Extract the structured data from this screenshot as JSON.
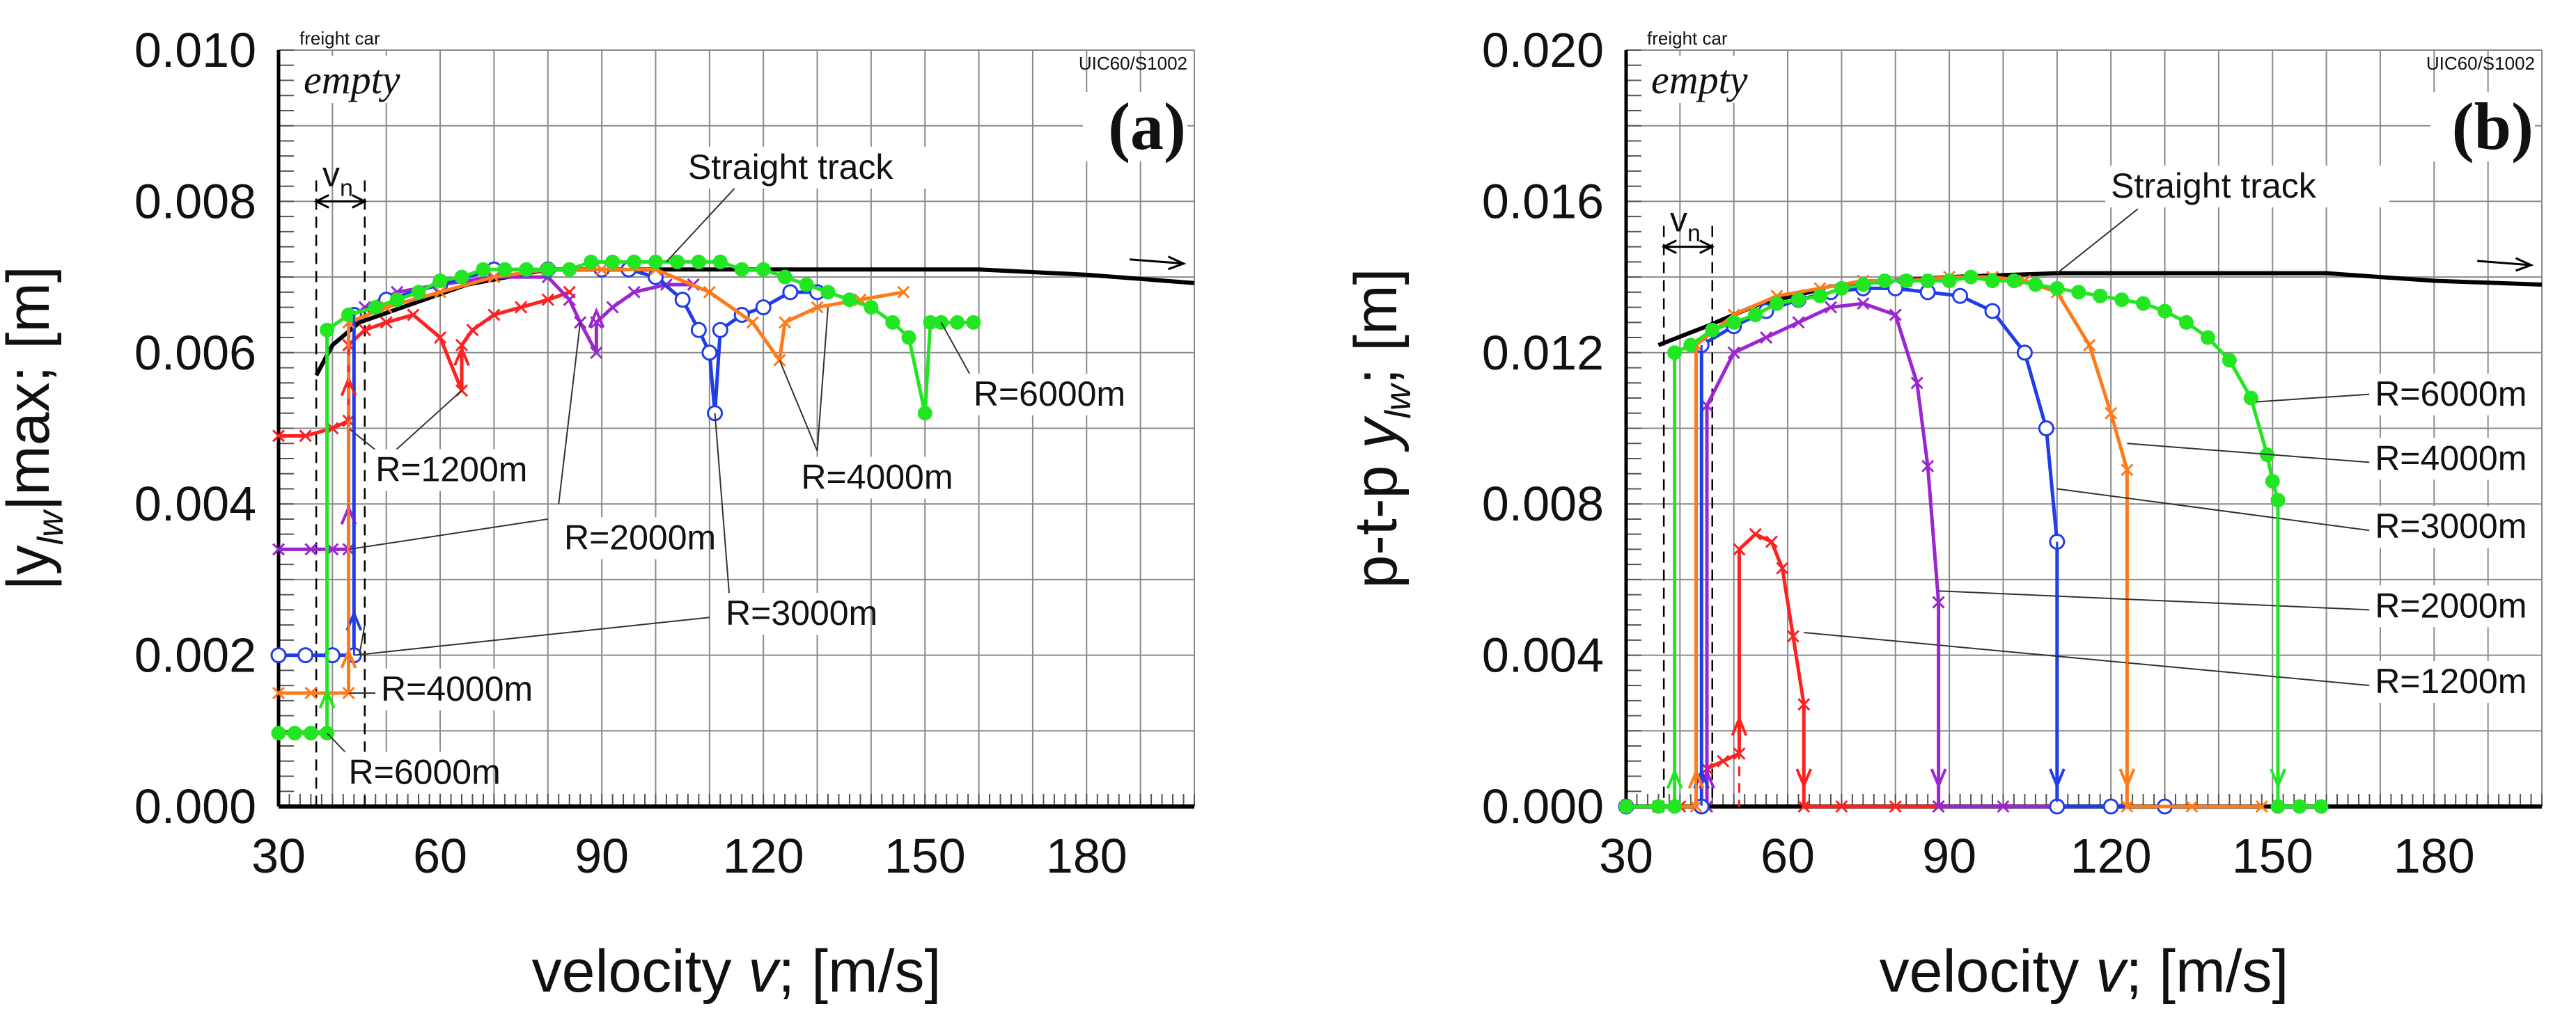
{
  "chart_data": [
    {
      "type": "line",
      "panel_label": "(a)",
      "ylabel_parts": [
        "|y",
        "lw",
        "|max; [m]"
      ],
      "xlabel_parts": [
        "velocity ",
        "v",
        "; [m/s]"
      ],
      "xlim": [
        30,
        200
      ],
      "ylim": [
        0,
        0.01
      ],
      "xticks": [
        30,
        60,
        90,
        120,
        150,
        180
      ],
      "yticks": [
        "0.000",
        "0.002",
        "0.004",
        "0.006",
        "0.008",
        "0.010"
      ],
      "corner_label_small": "freight car",
      "corner_label_big": "empty",
      "track_label": "UIC60/S1002",
      "vn_label": [
        "v",
        "n"
      ],
      "grid": true,
      "annotations": [
        "Straight track",
        "R=1200m",
        "R=2000m",
        "R=3000m",
        "R=4000m",
        "R=6000m",
        "R=2000m",
        "R=3000m",
        "R=4000m",
        "R=6000m"
      ],
      "series": [
        {
          "name": "Straight track",
          "color": "#000000",
          "marker": "none",
          "points": [
            [
              37,
              0.0057
            ],
            [
              40,
              0.0061
            ],
            [
              45,
              0.0064
            ],
            [
              55,
              0.00665
            ],
            [
              65,
              0.0069
            ],
            [
              80,
              0.0071
            ],
            [
              100,
              0.0071
            ],
            [
              130,
              0.0071
            ],
            [
              160,
              0.0071
            ],
            [
              180,
              0.00703
            ],
            [
              200,
              0.00692
            ]
          ]
        },
        {
          "name": "R=1200m",
          "color": "#ff2020",
          "marker": "x",
          "points": [
            [
              30,
              0.0049
            ],
            [
              35,
              0.0049
            ],
            [
              40,
              0.005
            ],
            [
              43,
              0.0051
            ],
            [
              43,
              0.0061
            ],
            [
              46,
              0.0063
            ],
            [
              50,
              0.0064
            ],
            [
              55,
              0.0065
            ],
            [
              60,
              0.0062
            ],
            [
              64,
              0.0055
            ],
            [
              64,
              0.0061
            ],
            [
              66,
              0.0063
            ],
            [
              70,
              0.0065
            ],
            [
              75,
              0.0066
            ],
            [
              80,
              0.0067
            ],
            [
              84,
              0.0068
            ]
          ]
        },
        {
          "name": "R=2000m",
          "color": "#9b26d0",
          "marker": "x",
          "points": [
            [
              30,
              0.0034
            ],
            [
              36,
              0.0034
            ],
            [
              40,
              0.0034
            ],
            [
              43,
              0.0034
            ],
            [
              43,
              0.0064
            ],
            [
              46,
              0.0066
            ],
            [
              52,
              0.0068
            ],
            [
              60,
              0.0069
            ],
            [
              70,
              0.007
            ],
            [
              80,
              0.007
            ],
            [
              84,
              0.0067
            ],
            [
              86,
              0.0064
            ],
            [
              89,
              0.006
            ],
            [
              89,
              0.0064
            ],
            [
              92,
              0.0066
            ],
            [
              96,
              0.0068
            ],
            [
              102,
              0.0069
            ],
            [
              107,
              0.0069
            ]
          ]
        },
        {
          "name": "R=3000m",
          "color": "#1f3de8",
          "marker": "o",
          "points": [
            [
              30,
              0.002
            ],
            [
              35,
              0.002
            ],
            [
              40,
              0.002
            ],
            [
              44,
              0.002
            ],
            [
              44,
              0.0065
            ],
            [
              50,
              0.0067
            ],
            [
              60,
              0.0069
            ],
            [
              70,
              0.0071
            ],
            [
              80,
              0.0071
            ],
            [
              90,
              0.0071
            ],
            [
              95,
              0.0071
            ],
            [
              100,
              0.007
            ],
            [
              105,
              0.0067
            ],
            [
              108,
              0.0063
            ],
            [
              110,
              0.006
            ],
            [
              111,
              0.0052
            ],
            [
              112,
              0.0063
            ],
            [
              116,
              0.0065
            ],
            [
              120,
              0.0066
            ],
            [
              125,
              0.0068
            ],
            [
              130,
              0.0068
            ]
          ]
        },
        {
          "name": "R=4000m",
          "color": "#ff7a1a",
          "marker": "x",
          "points": [
            [
              30,
              0.0015
            ],
            [
              36,
              0.0015
            ],
            [
              43,
              0.0015
            ],
            [
              43,
              0.0064
            ],
            [
              50,
              0.0066
            ],
            [
              60,
              0.0068
            ],
            [
              70,
              0.007
            ],
            [
              80,
              0.0071
            ],
            [
              90,
              0.0071
            ],
            [
              100,
              0.0071
            ],
            [
              110,
              0.0068
            ],
            [
              118,
              0.0064
            ],
            [
              123,
              0.0059
            ],
            [
              124,
              0.0064
            ],
            [
              130,
              0.0066
            ],
            [
              138,
              0.0067
            ],
            [
              146,
              0.0068
            ]
          ]
        },
        {
          "name": "R=6000m",
          "color": "#22e622",
          "marker": "dot",
          "points": [
            [
              30,
              0.00097
            ],
            [
              33,
              0.00097
            ],
            [
              36,
              0.00097
            ],
            [
              39,
              0.00097
            ],
            [
              39,
              0.0063
            ],
            [
              43,
              0.0065
            ],
            [
              48,
              0.0066
            ],
            [
              52,
              0.0067
            ],
            [
              56,
              0.0068
            ],
            [
              60,
              0.00695
            ],
            [
              64,
              0.007
            ],
            [
              68,
              0.0071
            ],
            [
              72,
              0.0071
            ],
            [
              76,
              0.0071
            ],
            [
              80,
              0.0071
            ],
            [
              84,
              0.0071
            ],
            [
              88,
              0.0072
            ],
            [
              92,
              0.0072
            ],
            [
              96,
              0.0072
            ],
            [
              100,
              0.0072
            ],
            [
              104,
              0.0072
            ],
            [
              108,
              0.0072
            ],
            [
              112,
              0.0072
            ],
            [
              116,
              0.0071
            ],
            [
              120,
              0.0071
            ],
            [
              124,
              0.007
            ],
            [
              128,
              0.0069
            ],
            [
              132,
              0.0068
            ],
            [
              136,
              0.0067
            ],
            [
              140,
              0.0066
            ],
            [
              144,
              0.0064
            ],
            [
              147,
              0.0062
            ],
            [
              150,
              0.0052
            ],
            [
              151,
              0.0064
            ],
            [
              153,
              0.0064
            ],
            [
              156,
              0.0064
            ],
            [
              159,
              0.0064
            ]
          ]
        }
      ]
    },
    {
      "type": "line",
      "panel_label": "(b)",
      "ylabel_parts": [
        "p-t-p ",
        "y",
        "lw",
        "; [m]"
      ],
      "xlabel_parts": [
        "velocity ",
        "v",
        "; [m/s]"
      ],
      "xlim": [
        30,
        200
      ],
      "ylim": [
        0,
        0.02
      ],
      "xticks": [
        30,
        60,
        90,
        120,
        150,
        180
      ],
      "yticks": [
        "0.000",
        "0.004",
        "0.008",
        "0.012",
        "0.016",
        "0.020"
      ],
      "corner_label_small": "freight car",
      "corner_label_big": "empty",
      "track_label": "UIC60/S1002",
      "vn_label": [
        "v",
        "n"
      ],
      "grid": true,
      "annotations": [
        "Straight track",
        "R=6000m",
        "R=4000m",
        "R=3000m",
        "R=2000m",
        "R=1200m"
      ],
      "series": [
        {
          "name": "Straight track",
          "color": "#000000",
          "marker": "none",
          "points": [
            [
              36,
              0.0122
            ],
            [
              45,
              0.0127
            ],
            [
              55,
              0.0133
            ],
            [
              70,
              0.0138
            ],
            [
              90,
              0.014
            ],
            [
              110,
              0.0141
            ],
            [
              160,
              0.0141
            ],
            [
              180,
              0.0139
            ],
            [
              200,
              0.0138
            ]
          ]
        },
        {
          "name": "R=1200m",
          "color": "#ff2020",
          "marker": "x",
          "points": [
            [
              30,
              0
            ],
            [
              36,
              0
            ],
            [
              40,
              0
            ],
            [
              45,
              0
            ],
            [
              45,
              0.001
            ],
            [
              48,
              0.0012
            ],
            [
              51,
              0.0014
            ],
            [
              51,
              0.0068
            ],
            [
              54,
              0.0072
            ],
            [
              57,
              0.007
            ],
            [
              59,
              0.0063
            ],
            [
              61,
              0.0045
            ],
            [
              63,
              0.0027
            ],
            [
              63,
              0
            ],
            [
              70,
              0
            ],
            [
              80,
              0
            ],
            [
              88,
              0
            ]
          ]
        },
        {
          "name": "R=2000m",
          "color": "#9b26d0",
          "marker": "x",
          "points": [
            [
              30,
              0
            ],
            [
              45,
              0
            ],
            [
              45,
              0.0106
            ],
            [
              50,
              0.012
            ],
            [
              56,
              0.0124
            ],
            [
              62,
              0.0128
            ],
            [
              68,
              0.0132
            ],
            [
              74,
              0.0133
            ],
            [
              80,
              0.013
            ],
            [
              84,
              0.0112
            ],
            [
              86,
              0.009
            ],
            [
              88,
              0.0054
            ],
            [
              88,
              0
            ],
            [
              100,
              0
            ],
            [
              110,
              0
            ]
          ]
        },
        {
          "name": "R=3000m",
          "color": "#1f3de8",
          "marker": "o",
          "points": [
            [
              30,
              0
            ],
            [
              44,
              0
            ],
            [
              44,
              0.0122
            ],
            [
              50,
              0.0127
            ],
            [
              56,
              0.0131
            ],
            [
              62,
              0.0134
            ],
            [
              68,
              0.0136
            ],
            [
              74,
              0.0137
            ],
            [
              80,
              0.0137
            ],
            [
              86,
              0.0136
            ],
            [
              92,
              0.0135
            ],
            [
              98,
              0.0131
            ],
            [
              104,
              0.012
            ],
            [
              108,
              0.01
            ],
            [
              110,
              0.007
            ],
            [
              110,
              0
            ],
            [
              120,
              0
            ],
            [
              130,
              0
            ]
          ]
        },
        {
          "name": "R=4000m",
          "color": "#ff7a1a",
          "marker": "x",
          "points": [
            [
              30,
              0
            ],
            [
              43,
              0
            ],
            [
              43,
              0.0122
            ],
            [
              50,
              0.013
            ],
            [
              58,
              0.0135
            ],
            [
              66,
              0.0137
            ],
            [
              74,
              0.0139
            ],
            [
              82,
              0.0139
            ],
            [
              90,
              0.014
            ],
            [
              98,
              0.014
            ],
            [
              104,
              0.0139
            ],
            [
              110,
              0.0136
            ],
            [
              116,
              0.0122
            ],
            [
              120,
              0.0104
            ],
            [
              123,
              0.0089
            ],
            [
              123,
              0
            ],
            [
              135,
              0
            ],
            [
              148,
              0
            ]
          ]
        },
        {
          "name": "R=6000m",
          "color": "#22e622",
          "marker": "dot",
          "points": [
            [
              30,
              0
            ],
            [
              36,
              0
            ],
            [
              39,
              0
            ],
            [
              39,
              0.012
            ],
            [
              42,
              0.0122
            ],
            [
              46,
              0.0126
            ],
            [
              50,
              0.0128
            ],
            [
              54,
              0.013
            ],
            [
              58,
              0.0133
            ],
            [
              62,
              0.0134
            ],
            [
              66,
              0.0135
            ],
            [
              70,
              0.0137
            ],
            [
              74,
              0.0138
            ],
            [
              78,
              0.0139
            ],
            [
              82,
              0.0139
            ],
            [
              86,
              0.0139
            ],
            [
              90,
              0.0139
            ],
            [
              94,
              0.014
            ],
            [
              98,
              0.0139
            ],
            [
              102,
              0.0139
            ],
            [
              106,
              0.0138
            ],
            [
              110,
              0.0137
            ],
            [
              114,
              0.0136
            ],
            [
              118,
              0.0135
            ],
            [
              122,
              0.0134
            ],
            [
              126,
              0.0133
            ],
            [
              130,
              0.0131
            ],
            [
              134,
              0.0128
            ],
            [
              138,
              0.0124
            ],
            [
              142,
              0.0118
            ],
            [
              146,
              0.0108
            ],
            [
              149,
              0.0093
            ],
            [
              150,
              0.0086
            ],
            [
              151,
              0.0081
            ],
            [
              151,
              0
            ],
            [
              155,
              0
            ],
            [
              159,
              0
            ]
          ]
        }
      ]
    }
  ]
}
